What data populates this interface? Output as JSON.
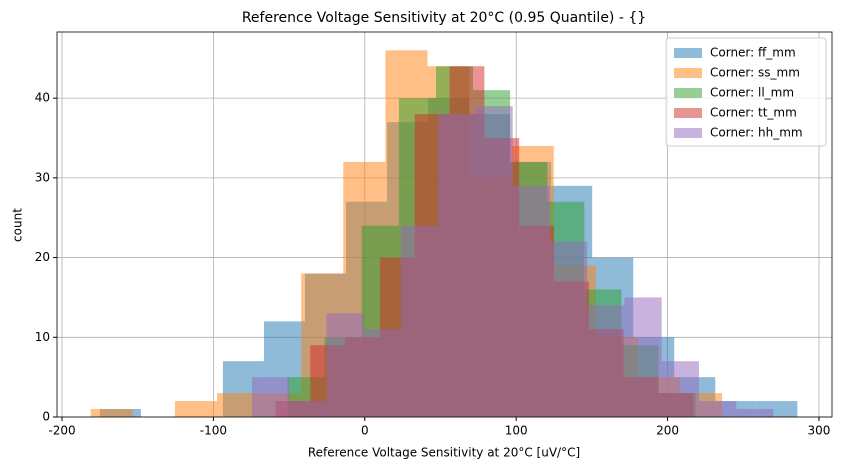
{
  "chart_data": {
    "type": "histogram",
    "title": "Reference Voltage Sensitivity at 20°C (0.95 Quantile) - {}",
    "x_label": "Reference Voltage Sensitivity at 20°C [uV/°C]",
    "y_label": "count",
    "xlim": [
      -203.3,
      308.6
    ],
    "ylim": [
      0,
      48.3
    ],
    "xticks": [
      -200,
      -100,
      0,
      100,
      200,
      300
    ],
    "yticks": [
      0,
      10,
      20,
      30,
      40
    ],
    "grid": true,
    "legend": "upper right",
    "opacity": 0.5,
    "series": [
      {
        "name": "Corner: ff_mm",
        "color": "#1f77b4",
        "bins": [
          -175,
          -147.9,
          -120.8,
          -93.7,
          -66.6,
          -39.5,
          -12.4,
          14.7,
          41.8,
          68.9,
          96,
          123.1,
          150.2,
          177.3,
          204.4,
          231.5,
          258.6,
          285.7
        ],
        "values": [
          1,
          0,
          0,
          7,
          12,
          18,
          27,
          37,
          40,
          38,
          32,
          29,
          20,
          10,
          5,
          2,
          2
        ]
      },
      {
        "name": "Corner: ss_mm",
        "color": "#ff7f0e",
        "bins": [
          -181,
          -153.2,
          -125.4,
          -97.6,
          -69.8,
          -42,
          -14.2,
          13.6,
          41.4,
          69.2,
          97,
          124.8,
          152.6,
          180.4,
          208.2,
          236
        ],
        "values": [
          1,
          0,
          2,
          3,
          3,
          18,
          32,
          46,
          44,
          30,
          34,
          19,
          10,
          5,
          3
        ]
      },
      {
        "name": "Corner: ll_mm",
        "color": "#2ca02c",
        "bins": [
          -51,
          -26.5,
          -2,
          22.5,
          47,
          71.5,
          96,
          120.5,
          145,
          169.5,
          194,
          218.5
        ],
        "values": [
          5,
          10,
          24,
          40,
          44,
          41,
          32,
          27,
          16,
          9,
          3
        ]
      },
      {
        "name": "Corner: tt_mm",
        "color": "#d62728",
        "bins": [
          -59,
          -36,
          -13,
          10,
          33,
          56,
          79,
          102,
          125,
          148,
          171,
          194,
          217
        ],
        "values": [
          2,
          9,
          10,
          20,
          38,
          44,
          35,
          24,
          17,
          11,
          5,
          3
        ]
      },
      {
        "name": "Corner: hh_mm",
        "color": "#9467bd",
        "bins": [
          -74.5,
          -49.9,
          -25.3,
          -0.7,
          23.9,
          48.5,
          73.1,
          97.7,
          122.3,
          146.9,
          171.5,
          196.1,
          220.7,
          245.3,
          269.9
        ],
        "values": [
          5,
          2,
          13,
          11,
          24,
          38,
          39,
          29,
          22,
          14,
          15,
          7,
          2,
          1
        ]
      }
    ]
  }
}
